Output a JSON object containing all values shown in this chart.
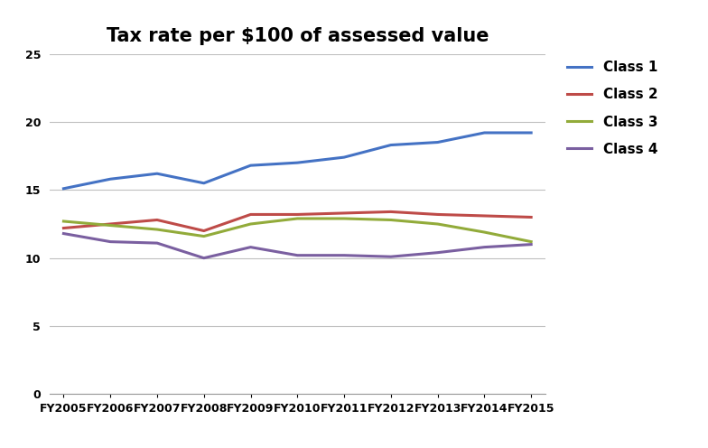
{
  "title": "Tax rate per $100 of assessed value",
  "categories": [
    "FY2005",
    "FY2006",
    "FY2007",
    "FY2008",
    "FY2009",
    "FY2010",
    "FY2011",
    "FY2012",
    "FY2013",
    "FY2014",
    "FY2015"
  ],
  "series": {
    "Class 1": [
      15.1,
      15.8,
      16.2,
      15.5,
      16.8,
      17.0,
      17.4,
      18.3,
      18.5,
      19.2,
      19.2
    ],
    "Class 2": [
      12.2,
      12.5,
      12.8,
      12.0,
      13.2,
      13.2,
      13.3,
      13.4,
      13.2,
      13.1,
      13.0
    ],
    "Class 3": [
      12.7,
      12.4,
      12.1,
      11.6,
      12.5,
      12.9,
      12.9,
      12.8,
      12.5,
      11.9,
      11.2
    ],
    "Class 4": [
      11.8,
      11.2,
      11.1,
      10.0,
      10.8,
      10.2,
      10.2,
      10.1,
      10.4,
      10.8,
      11.0
    ]
  },
  "colors": {
    "Class 1": "#4472C4",
    "Class 2": "#BE4B48",
    "Class 3": "#92AB3A",
    "Class 4": "#7A5FA0"
  },
  "ylim": [
    0,
    25
  ],
  "yticks": [
    0,
    5,
    10,
    15,
    20,
    25
  ],
  "line_width": 2.2,
  "background_color": "#FFFFFF",
  "grid_color": "#C0C0C0",
  "title_fontsize": 15,
  "legend_fontsize": 11,
  "tick_fontsize": 9
}
